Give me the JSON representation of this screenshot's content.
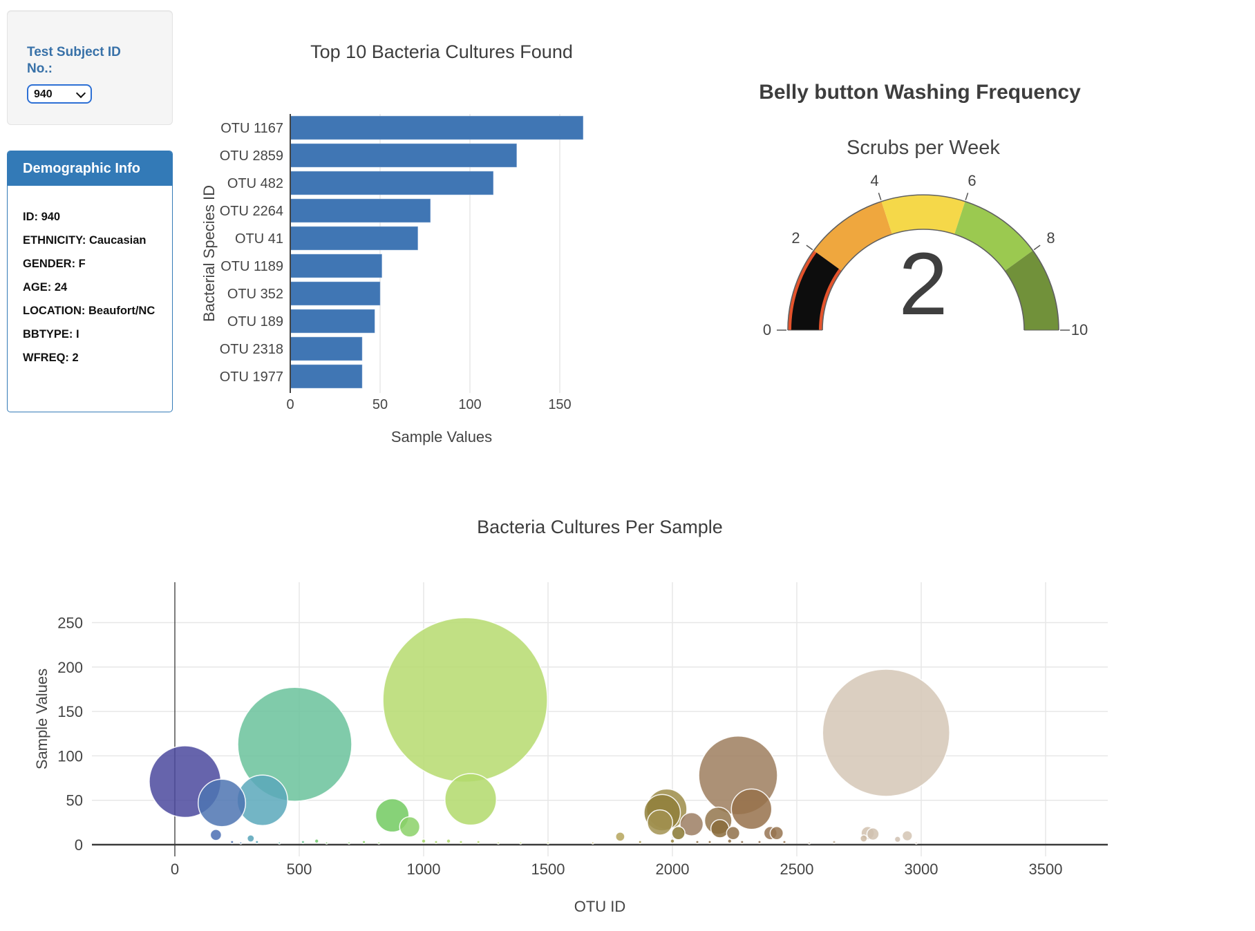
{
  "page": {
    "background": "#ffffff",
    "accent_blue": "#337ab7",
    "label_blue": "#3871a8",
    "select_border": "#2c6fd4"
  },
  "subject_selector": {
    "label": "Test Subject ID No.:",
    "selected": "940",
    "options": [
      "940"
    ]
  },
  "demographic_panel": {
    "title": "Demographic Info",
    "fields": [
      "ID: 940",
      "ETHNICITY: Caucasian",
      "GENDER: F",
      "AGE: 24",
      "LOCATION: Beaufort/NC",
      "BBTYPE: I",
      "WFREQ: 2"
    ]
  },
  "chart_data": [
    {
      "type": "bar",
      "title": "Top 10 Bacteria Cultures Found",
      "xlabel": "Sample Values",
      "ylabel": "Bacterial Species ID",
      "categories": [
        "OTU 1167",
        "OTU 2859",
        "OTU 482",
        "OTU 2264",
        "OTU 41",
        "OTU 1189",
        "OTU 352",
        "OTU 189",
        "OTU 2318",
        "OTU 1977"
      ],
      "values": [
        163,
        126,
        113,
        78,
        71,
        51,
        50,
        47,
        40,
        40
      ],
      "xticks": [
        0,
        50,
        100,
        150
      ],
      "xlim": [
        0,
        168
      ],
      "bar_color": "#4076b4",
      "grid": true,
      "orientation": "horizontal"
    },
    {
      "type": "gauge",
      "title": "Belly button Washing Frequency",
      "subtitle": "Scrubs per Week",
      "value": 2,
      "min": 0,
      "max": 10,
      "tick_values": [
        0,
        2,
        4,
        6,
        8,
        10
      ],
      "segments": [
        {
          "from": 0,
          "to": 2,
          "color": "#e5532c"
        },
        {
          "from": 2,
          "to": 4,
          "color": "#efa73e"
        },
        {
          "from": 4,
          "to": 6,
          "color": "#f5d849"
        },
        {
          "from": 6,
          "to": 8,
          "color": "#9bc950"
        },
        {
          "from": 8,
          "to": 10,
          "color": "#71913a"
        }
      ],
      "bar": {
        "from": 0,
        "to": 2,
        "color": "#0d0d0d"
      },
      "outline_color": "#606060"
    },
    {
      "type": "scatter",
      "title": "Bacteria Cultures Per Sample",
      "xlabel": "OTU ID",
      "ylabel": "Sample Values",
      "xticks": [
        0,
        500,
        1000,
        1500,
        2000,
        2500,
        3000,
        3500
      ],
      "yticks": [
        0,
        50,
        100,
        150,
        200,
        250
      ],
      "xlim": [
        -330,
        3750
      ],
      "ylim": [
        -13,
        295
      ],
      "grid": true,
      "size_note": "marker diameter proportional to y value",
      "points": [
        {
          "x": 41,
          "y": 71,
          "color": "#4b499e"
        },
        {
          "x": 189,
          "y": 47,
          "color": "#4d74b2"
        },
        {
          "x": 352,
          "y": 50,
          "color": "#5ba8bb"
        },
        {
          "x": 482,
          "y": 113,
          "color": "#6ac29b"
        },
        {
          "x": 874,
          "y": 33,
          "color": "#72ca60"
        },
        {
          "x": 944,
          "y": 20,
          "color": "#8bd168"
        },
        {
          "x": 1167,
          "y": 163,
          "color": "#b6db6e"
        },
        {
          "x": 1189,
          "y": 51,
          "color": "#b2d96b"
        },
        {
          "x": 1950,
          "y": 25,
          "color": "#a29251"
        },
        {
          "x": 1959,
          "y": 36,
          "color": "#8f7f3a"
        },
        {
          "x": 1977,
          "y": 40,
          "color": "#9c8c48"
        },
        {
          "x": 2024,
          "y": 13,
          "color": "#887831"
        },
        {
          "x": 2077,
          "y": 23,
          "color": "#9c7e63"
        },
        {
          "x": 2184,
          "y": 27,
          "color": "#93764c"
        },
        {
          "x": 2191,
          "y": 18,
          "color": "#8a6b3b"
        },
        {
          "x": 2244,
          "y": 13,
          "color": "#8f7049"
        },
        {
          "x": 2264,
          "y": 78,
          "color": "#9d7e5e"
        },
        {
          "x": 2318,
          "y": 40,
          "color": "#97714b"
        },
        {
          "x": 2394,
          "y": 13,
          "color": "#967453"
        },
        {
          "x": 2419,
          "y": 13,
          "color": "#977450"
        },
        {
          "x": 2769,
          "y": 7,
          "color": "#ccbaa3"
        },
        {
          "x": 2785,
          "y": 13,
          "color": "#d1c1ae"
        },
        {
          "x": 2806,
          "y": 12,
          "color": "#d0c1af"
        },
        {
          "x": 2859,
          "y": 126,
          "color": "#d5c7b6"
        },
        {
          "x": 2905,
          "y": 6,
          "color": "#cfc0b0"
        },
        {
          "x": 2944,
          "y": 10,
          "color": "#d3c4b3"
        },
        {
          "x": 165,
          "y": 11,
          "color": "#4a6db3"
        },
        {
          "x": 305,
          "y": 7,
          "color": "#57a3b8"
        },
        {
          "x": 1790,
          "y": 9,
          "color": "#b5a45c"
        },
        {
          "x": 230,
          "y": 3,
          "color": "#4c70ae"
        },
        {
          "x": 265,
          "y": 2,
          "color": "#4f7fb5"
        },
        {
          "x": 330,
          "y": 3,
          "color": "#58a5ba"
        },
        {
          "x": 420,
          "y": 2,
          "color": "#60b5a8"
        },
        {
          "x": 515,
          "y": 3,
          "color": "#68c38f"
        },
        {
          "x": 570,
          "y": 4,
          "color": "#6fc86a"
        },
        {
          "x": 610,
          "y": 2,
          "color": "#75ca62"
        },
        {
          "x": 700,
          "y": 2,
          "color": "#7ccd5f"
        },
        {
          "x": 760,
          "y": 3,
          "color": "#84cf63"
        },
        {
          "x": 820,
          "y": 2,
          "color": "#8dd166"
        },
        {
          "x": 1000,
          "y": 4,
          "color": "#a3d565"
        },
        {
          "x": 1050,
          "y": 3,
          "color": "#a8d667"
        },
        {
          "x": 1100,
          "y": 4,
          "color": "#add768"
        },
        {
          "x": 1150,
          "y": 3,
          "color": "#b2d96b"
        },
        {
          "x": 1220,
          "y": 3,
          "color": "#b9dc72"
        },
        {
          "x": 1300,
          "y": 2,
          "color": "#bedd77"
        },
        {
          "x": 1390,
          "y": 2,
          "color": "#c4df7e"
        },
        {
          "x": 1500,
          "y": 2,
          "color": "#cfe08c"
        },
        {
          "x": 1680,
          "y": 2,
          "color": "#bcab63"
        },
        {
          "x": 1870,
          "y": 3,
          "color": "#a6954f"
        },
        {
          "x": 2000,
          "y": 4,
          "color": "#96863e"
        },
        {
          "x": 2100,
          "y": 3,
          "color": "#92764e"
        },
        {
          "x": 2150,
          "y": 3,
          "color": "#907248"
        },
        {
          "x": 2230,
          "y": 4,
          "color": "#8e7045"
        },
        {
          "x": 2280,
          "y": 3,
          "color": "#927452"
        },
        {
          "x": 2350,
          "y": 3,
          "color": "#957556"
        },
        {
          "x": 2450,
          "y": 3,
          "color": "#9a7a58"
        },
        {
          "x": 2550,
          "y": 2,
          "color": "#b5a58f"
        },
        {
          "x": 2650,
          "y": 3,
          "color": "#c2b29c"
        },
        {
          "x": 2980,
          "y": 2,
          "color": "#d2c3b2"
        }
      ]
    }
  ]
}
